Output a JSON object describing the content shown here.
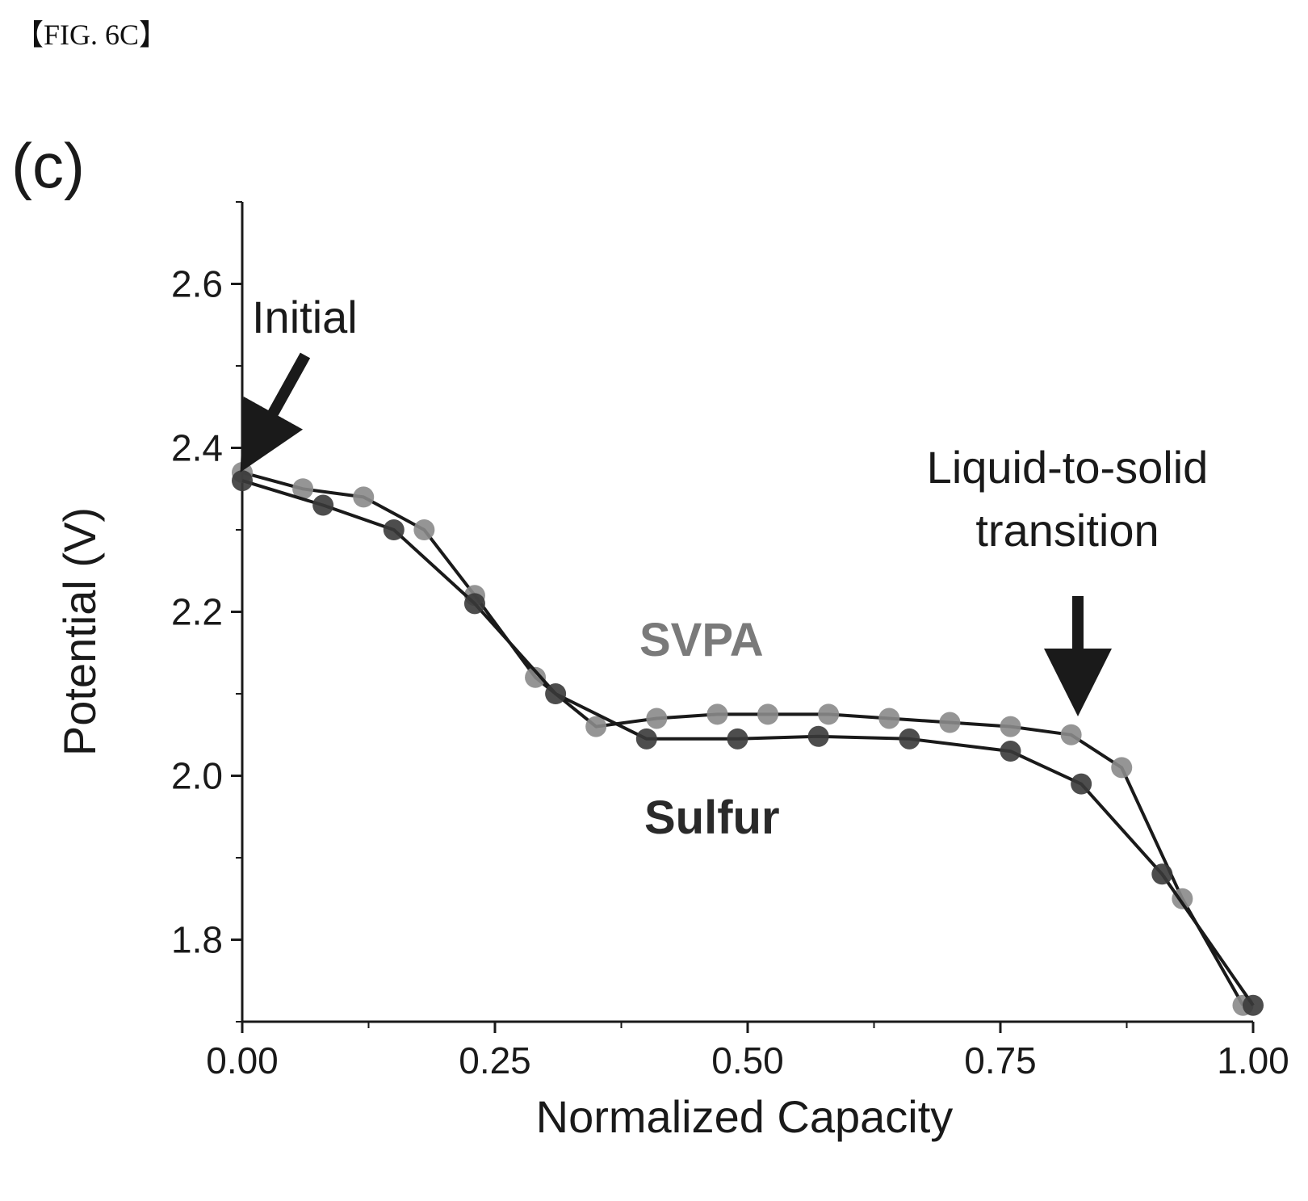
{
  "figure_label": "【FIG. 6C】",
  "panel_label": "(c)",
  "colors": {
    "svpa_marker": "#8a8a8a",
    "sulfur_marker": "#3a3a3a",
    "line": "#1a1a1a",
    "svpa_label": "#7a7a7a",
    "sulfur_label": "#2a2a2a"
  },
  "annotations": {
    "initial": "Initial",
    "transition_line1": "Liquid-to-solid",
    "transition_line2": "transition"
  },
  "chart_data": {
    "type": "line",
    "xlabel": "Normalized Capacity",
    "ylabel": "Potential (V)",
    "xlim": [
      0.0,
      1.0
    ],
    "ylim": [
      1.7,
      2.7
    ],
    "xticks": [
      0.0,
      0.25,
      0.5,
      0.75,
      1.0
    ],
    "xtick_labels": [
      "0.00",
      "0.25",
      "0.50",
      "0.75",
      "1.00"
    ],
    "yticks": [
      1.8,
      2.0,
      2.2,
      2.4,
      2.6
    ],
    "ytick_labels": [
      "1.8",
      "2.0",
      "2.2",
      "2.4",
      "2.6"
    ],
    "grid": false,
    "series": [
      {
        "name": "SVPA",
        "x": [
          0.0,
          0.06,
          0.12,
          0.18,
          0.23,
          0.29,
          0.35,
          0.41,
          0.47,
          0.52,
          0.58,
          0.64,
          0.7,
          0.76,
          0.82,
          0.87,
          0.93,
          0.99
        ],
        "y": [
          2.37,
          2.35,
          2.34,
          2.3,
          2.22,
          2.12,
          2.06,
          2.07,
          2.075,
          2.075,
          2.075,
          2.07,
          2.065,
          2.06,
          2.05,
          2.01,
          1.85,
          1.72
        ]
      },
      {
        "name": "Sulfur",
        "x": [
          0.0,
          0.08,
          0.15,
          0.23,
          0.31,
          0.4,
          0.49,
          0.57,
          0.66,
          0.76,
          0.83,
          0.91,
          1.0
        ],
        "y": [
          2.36,
          2.33,
          2.3,
          2.21,
          2.1,
          2.045,
          2.045,
          2.048,
          2.045,
          2.03,
          1.99,
          1.88,
          1.72
        ]
      }
    ]
  }
}
